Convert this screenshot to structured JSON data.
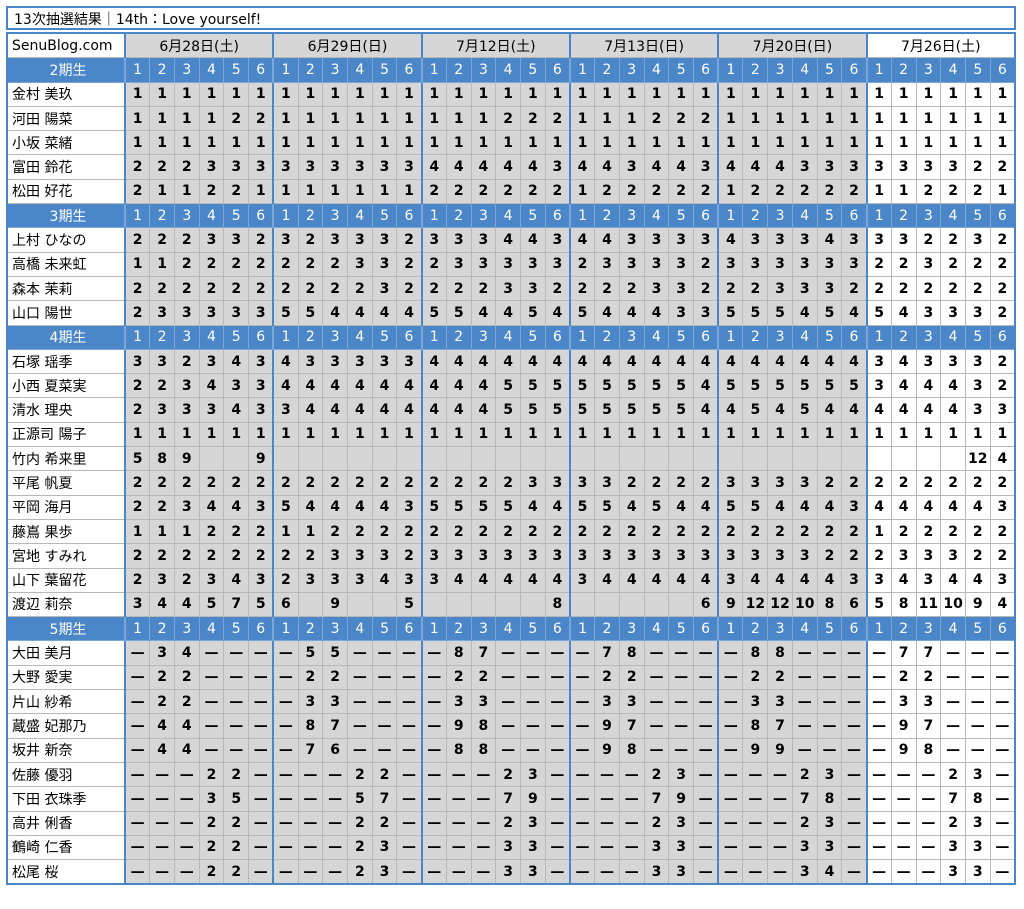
{
  "title": "13次抽選結果｜14th：Love yourself!",
  "site": "SenuBlog.com",
  "dates": [
    "6月28日(土)",
    "6月29日(日)",
    "7月12日(土)",
    "7月13日(日)",
    "7月20日(日)",
    "7月26日(土)"
  ],
  "slots": [
    1,
    2,
    3,
    4,
    5,
    6
  ],
  "sections": [
    {
      "label": "2期生",
      "rows": [
        {
          "name": "金村 美玖",
          "cells": [
            1,
            1,
            1,
            1,
            1,
            1,
            1,
            1,
            1,
            1,
            1,
            1,
            1,
            1,
            1,
            1,
            1,
            1,
            1,
            1,
            1,
            1,
            1,
            1,
            1,
            1,
            1,
            1,
            1,
            1,
            1,
            1,
            1,
            1,
            1,
            1
          ]
        },
        {
          "name": "河田 陽菜",
          "cells": [
            1,
            1,
            1,
            1,
            2,
            2,
            1,
            1,
            1,
            1,
            1,
            1,
            1,
            1,
            1,
            2,
            2,
            2,
            1,
            1,
            1,
            2,
            2,
            2,
            1,
            1,
            1,
            1,
            1,
            1,
            1,
            1,
            1,
            1,
            1,
            1
          ]
        },
        {
          "name": "小坂 菜緒",
          "cells": [
            1,
            1,
            1,
            1,
            1,
            1,
            1,
            1,
            1,
            1,
            1,
            1,
            1,
            1,
            1,
            1,
            1,
            1,
            1,
            1,
            1,
            1,
            1,
            1,
            1,
            1,
            1,
            1,
            1,
            1,
            1,
            1,
            1,
            1,
            1,
            1
          ]
        },
        {
          "name": "富田 鈴花",
          "cells": [
            2,
            2,
            2,
            3,
            3,
            3,
            3,
            3,
            3,
            3,
            3,
            3,
            4,
            4,
            4,
            4,
            4,
            3,
            4,
            4,
            3,
            4,
            4,
            3,
            4,
            4,
            4,
            3,
            3,
            3,
            3,
            3,
            3,
            3,
            2,
            2
          ]
        },
        {
          "name": "松田 好花",
          "cells": [
            2,
            1,
            1,
            2,
            2,
            1,
            1,
            1,
            1,
            1,
            1,
            1,
            2,
            2,
            2,
            2,
            2,
            2,
            1,
            2,
            2,
            2,
            2,
            2,
            1,
            2,
            2,
            2,
            2,
            2,
            1,
            1,
            2,
            2,
            2,
            1
          ]
        }
      ]
    },
    {
      "label": "3期生",
      "rows": [
        {
          "name": "上村 ひなの",
          "cells": [
            2,
            2,
            2,
            3,
            3,
            2,
            3,
            2,
            3,
            3,
            3,
            2,
            3,
            3,
            3,
            4,
            4,
            3,
            4,
            4,
            3,
            3,
            3,
            3,
            4,
            3,
            3,
            3,
            4,
            3,
            3,
            3,
            2,
            2,
            3,
            2
          ]
        },
        {
          "name": "高橋 未来虹",
          "cells": [
            1,
            1,
            2,
            2,
            2,
            2,
            2,
            2,
            2,
            3,
            3,
            2,
            2,
            3,
            3,
            3,
            3,
            3,
            2,
            3,
            3,
            3,
            3,
            2,
            3,
            3,
            3,
            3,
            3,
            3,
            2,
            2,
            3,
            2,
            2,
            2
          ]
        },
        {
          "name": "森本 茉莉",
          "cells": [
            2,
            2,
            2,
            2,
            2,
            2,
            2,
            2,
            2,
            2,
            3,
            2,
            2,
            2,
            2,
            3,
            3,
            2,
            2,
            2,
            2,
            3,
            3,
            2,
            2,
            2,
            3,
            3,
            3,
            2,
            2,
            2,
            2,
            2,
            2,
            2
          ]
        },
        {
          "name": "山口 陽世",
          "cells": [
            2,
            3,
            3,
            3,
            3,
            3,
            5,
            5,
            4,
            4,
            4,
            4,
            5,
            5,
            4,
            4,
            5,
            4,
            5,
            4,
            4,
            4,
            3,
            3,
            5,
            5,
            5,
            4,
            5,
            4,
            5,
            4,
            3,
            3,
            3,
            2
          ]
        }
      ]
    },
    {
      "label": "4期生",
      "rows": [
        {
          "name": "石塚 瑶季",
          "cells": [
            3,
            3,
            2,
            3,
            4,
            3,
            4,
            3,
            3,
            3,
            3,
            3,
            4,
            4,
            4,
            4,
            4,
            4,
            4,
            4,
            4,
            4,
            4,
            4,
            4,
            4,
            4,
            4,
            4,
            4,
            3,
            4,
            3,
            3,
            3,
            2
          ]
        },
        {
          "name": "小西 夏菜実",
          "cells": [
            2,
            2,
            3,
            4,
            3,
            3,
            4,
            4,
            4,
            4,
            4,
            4,
            4,
            4,
            4,
            5,
            5,
            5,
            5,
            5,
            5,
            5,
            5,
            4,
            5,
            5,
            5,
            5,
            5,
            5,
            3,
            4,
            4,
            4,
            3,
            2
          ]
        },
        {
          "name": "清水 理央",
          "cells": [
            2,
            3,
            3,
            3,
            4,
            3,
            3,
            4,
            4,
            4,
            4,
            4,
            4,
            4,
            4,
            5,
            5,
            5,
            5,
            5,
            5,
            5,
            5,
            4,
            4,
            5,
            4,
            5,
            4,
            4,
            4,
            4,
            4,
            4,
            3,
            3
          ]
        },
        {
          "name": "正源司 陽子",
          "cells": [
            1,
            1,
            1,
            1,
            1,
            1,
            1,
            1,
            1,
            1,
            1,
            1,
            1,
            1,
            1,
            1,
            1,
            1,
            1,
            1,
            1,
            1,
            1,
            1,
            1,
            1,
            1,
            1,
            1,
            1,
            1,
            1,
            1,
            1,
            1,
            1
          ]
        },
        {
          "name": "竹内 希来里",
          "cells": [
            5,
            8,
            9,
            null,
            null,
            9,
            null,
            null,
            null,
            null,
            null,
            null,
            null,
            null,
            null,
            null,
            null,
            null,
            null,
            null,
            null,
            null,
            null,
            null,
            null,
            null,
            null,
            null,
            null,
            null,
            null,
            null,
            null,
            null,
            12,
            4
          ]
        },
        {
          "name": "平尾 帆夏",
          "cells": [
            2,
            2,
            2,
            2,
            2,
            2,
            2,
            2,
            2,
            2,
            2,
            2,
            2,
            2,
            2,
            2,
            3,
            3,
            3,
            3,
            2,
            2,
            2,
            2,
            3,
            3,
            3,
            3,
            2,
            2,
            2,
            2,
            2,
            2,
            2,
            2
          ]
        },
        {
          "name": "平岡 海月",
          "cells": [
            2,
            2,
            3,
            4,
            4,
            3,
            5,
            4,
            4,
            4,
            4,
            3,
            5,
            5,
            5,
            5,
            4,
            4,
            5,
            5,
            4,
            5,
            4,
            4,
            5,
            5,
            4,
            4,
            4,
            3,
            4,
            4,
            4,
            4,
            4,
            3
          ]
        },
        {
          "name": "藤嶌 果歩",
          "cells": [
            1,
            1,
            1,
            2,
            2,
            2,
            1,
            1,
            2,
            2,
            2,
            2,
            2,
            2,
            2,
            2,
            2,
            2,
            2,
            2,
            2,
            2,
            2,
            2,
            2,
            2,
            2,
            2,
            2,
            2,
            1,
            2,
            2,
            2,
            2,
            2
          ]
        },
        {
          "name": "宮地 すみれ",
          "cells": [
            2,
            2,
            2,
            2,
            2,
            2,
            2,
            2,
            3,
            3,
            3,
            2,
            3,
            3,
            3,
            3,
            3,
            3,
            3,
            3,
            3,
            3,
            3,
            3,
            3,
            3,
            3,
            3,
            2,
            2,
            2,
            3,
            3,
            3,
            2,
            2
          ]
        },
        {
          "name": "山下 葉留花",
          "cells": [
            2,
            3,
            2,
            3,
            4,
            3,
            2,
            3,
            3,
            3,
            4,
            3,
            3,
            4,
            4,
            4,
            4,
            4,
            3,
            4,
            4,
            4,
            4,
            4,
            3,
            4,
            4,
            4,
            4,
            3,
            3,
            4,
            3,
            4,
            4,
            3
          ]
        },
        {
          "name": "渡辺 莉奈",
          "cells": [
            3,
            4,
            4,
            5,
            7,
            5,
            6,
            null,
            9,
            null,
            null,
            5,
            null,
            null,
            null,
            null,
            null,
            8,
            null,
            null,
            null,
            null,
            null,
            6,
            9,
            12,
            12,
            10,
            8,
            6,
            5,
            8,
            11,
            10,
            9,
            4
          ]
        }
      ]
    },
    {
      "label": "5期生",
      "rows": [
        {
          "name": "大田 美月",
          "cells": [
            "—",
            3,
            4,
            "—",
            "—",
            "—",
            "—",
            5,
            5,
            "—",
            "—",
            "—",
            "—",
            8,
            7,
            "—",
            "—",
            "—",
            "—",
            7,
            8,
            "—",
            "—",
            "—",
            "—",
            8,
            8,
            "—",
            "—",
            "—",
            "—",
            7,
            7,
            "—",
            "—",
            "—"
          ]
        },
        {
          "name": "大野 愛実",
          "cells": [
            "—",
            2,
            2,
            "—",
            "—",
            "—",
            "—",
            2,
            2,
            "—",
            "—",
            "—",
            "—",
            2,
            2,
            "—",
            "—",
            "—",
            "—",
            2,
            2,
            "—",
            "—",
            "—",
            "—",
            2,
            2,
            "—",
            "—",
            "—",
            "—",
            2,
            2,
            "—",
            "—",
            "—"
          ]
        },
        {
          "name": "片山 紗希",
          "cells": [
            "—",
            2,
            2,
            "—",
            "—",
            "—",
            "—",
            3,
            3,
            "—",
            "—",
            "—",
            "—",
            3,
            3,
            "—",
            "—",
            "—",
            "—",
            3,
            3,
            "—",
            "—",
            "—",
            "—",
            3,
            3,
            "—",
            "—",
            "—",
            "—",
            3,
            3,
            "—",
            "—",
            "—"
          ]
        },
        {
          "name": "蔵盛 妃那乃",
          "cells": [
            "—",
            4,
            4,
            "—",
            "—",
            "—",
            "—",
            8,
            7,
            "—",
            "—",
            "—",
            "—",
            9,
            8,
            "—",
            "—",
            "—",
            "—",
            9,
            7,
            "—",
            "—",
            "—",
            "—",
            8,
            7,
            "—",
            "—",
            "—",
            "—",
            9,
            7,
            "—",
            "—",
            "—"
          ]
        },
        {
          "name": "坂井 新奈",
          "cells": [
            "—",
            4,
            4,
            "—",
            "—",
            "—",
            "—",
            7,
            6,
            "—",
            "—",
            "—",
            "—",
            8,
            8,
            "—",
            "—",
            "—",
            "—",
            9,
            8,
            "—",
            "—",
            "—",
            "—",
            9,
            9,
            "—",
            "—",
            "—",
            "—",
            9,
            8,
            "—",
            "—",
            "—"
          ]
        },
        {
          "name": "佐藤 優羽",
          "cells": [
            "—",
            "—",
            "—",
            2,
            2,
            "—",
            "—",
            "—",
            "—",
            2,
            2,
            "—",
            "—",
            "—",
            "—",
            2,
            3,
            "—",
            "—",
            "—",
            "—",
            2,
            3,
            "—",
            "—",
            "—",
            "—",
            2,
            3,
            "—",
            "—",
            "—",
            "—",
            2,
            3,
            "—"
          ]
        },
        {
          "name": "下田 衣珠季",
          "cells": [
            "—",
            "—",
            "—",
            3,
            5,
            "—",
            "—",
            "—",
            "—",
            5,
            7,
            "—",
            "—",
            "—",
            "—",
            7,
            9,
            "—",
            "—",
            "—",
            "—",
            7,
            9,
            "—",
            "—",
            "—",
            "—",
            7,
            8,
            "—",
            "—",
            "—",
            "—",
            7,
            8,
            "—"
          ]
        },
        {
          "name": "高井 俐香",
          "cells": [
            "—",
            "—",
            "—",
            2,
            2,
            "—",
            "—",
            "—",
            "—",
            2,
            2,
            "—",
            "—",
            "—",
            "—",
            2,
            3,
            "—",
            "—",
            "—",
            "—",
            2,
            3,
            "—",
            "—",
            "—",
            "—",
            2,
            3,
            "—",
            "—",
            "—",
            "—",
            2,
            3,
            "—"
          ]
        },
        {
          "name": "鶴崎 仁香",
          "cells": [
            "—",
            "—",
            "—",
            2,
            2,
            "—",
            "—",
            "—",
            "—",
            2,
            3,
            "—",
            "—",
            "—",
            "—",
            3,
            3,
            "—",
            "—",
            "—",
            "—",
            3,
            3,
            "—",
            "—",
            "—",
            "—",
            3,
            3,
            "—",
            "—",
            "—",
            "—",
            3,
            3,
            "—"
          ]
        },
        {
          "name": "松尾 桜",
          "cells": [
            "—",
            "—",
            "—",
            2,
            2,
            "—",
            "—",
            "—",
            "—",
            2,
            3,
            "—",
            "—",
            "—",
            "—",
            3,
            3,
            "—",
            "—",
            "—",
            "—",
            3,
            3,
            "—",
            "—",
            "—",
            "—",
            3,
            4,
            "—",
            "—",
            "—",
            "—",
            3,
            3,
            "—"
          ]
        }
      ]
    }
  ]
}
